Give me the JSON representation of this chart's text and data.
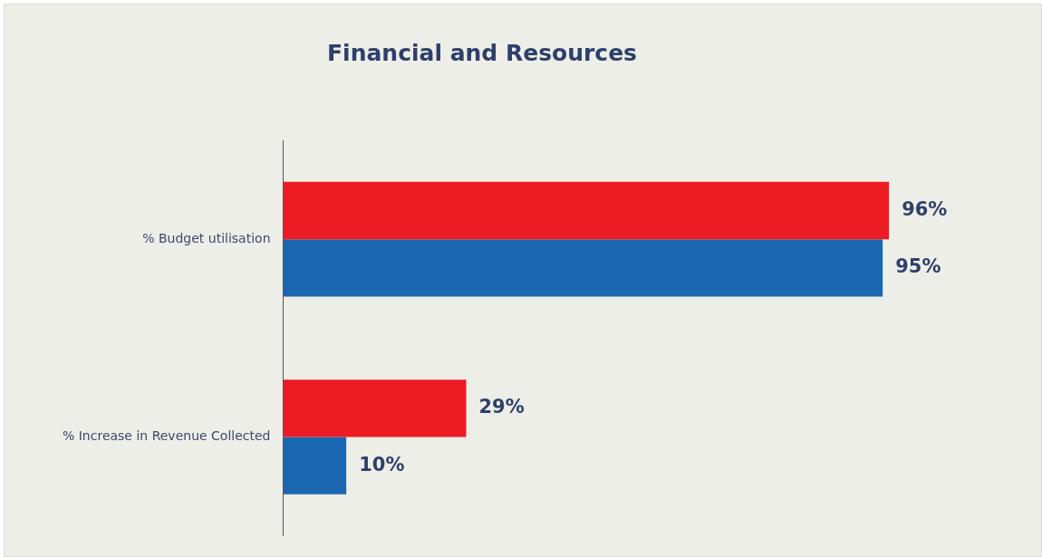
{
  "chart_data": {
    "type": "bar",
    "orientation": "horizontal",
    "title": "Financial and Resources",
    "categories": [
      "% Budget utilisation",
      "% Increase in Revenue Collected"
    ],
    "series": [
      {
        "color": "#ed1c24",
        "values": [
          96,
          29
        ],
        "value_labels": [
          "96%",
          "29%"
        ]
      },
      {
        "color": "#1a67b0",
        "values": [
          95,
          10
        ],
        "value_labels": [
          "95%",
          "10%"
        ]
      }
    ],
    "grid": false,
    "legend": false,
    "tick_labels": "y"
  }
}
